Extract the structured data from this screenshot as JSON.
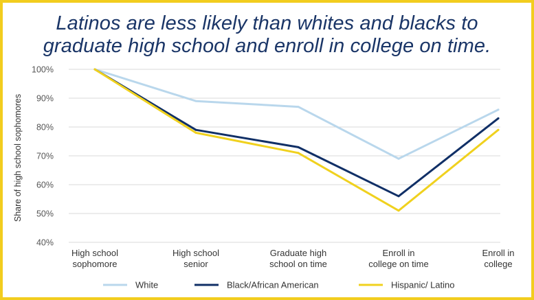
{
  "chart_data": {
    "type": "line",
    "title": "Latinos are less likely than whites and blacks to graduate high school and enroll in college on time.",
    "title_lines": [
      "Latinos are less likely than whites and blacks to",
      "graduate high school and enroll in college on time."
    ],
    "ylabel": "Share of high school sophomores",
    "xlabel": "",
    "ylim": [
      40,
      100
    ],
    "yticks": [
      100,
      90,
      80,
      70,
      60,
      50,
      40
    ],
    "ytick_labels": [
      "100%",
      "90%",
      "80%",
      "70%",
      "60%",
      "50%",
      "40%"
    ],
    "categories": [
      [
        "High school",
        "sophomore"
      ],
      [
        "High school",
        "senior"
      ],
      [
        "Graduate high",
        "school on time"
      ],
      [
        "Enroll in",
        "college on time"
      ],
      [
        "Enroll in",
        "college"
      ]
    ],
    "grid": true,
    "legend_position": "bottom",
    "series": [
      {
        "name": "White",
        "color": "#b9d7ec",
        "values": [
          100,
          89,
          87,
          69,
          86
        ]
      },
      {
        "name": "Black/African American",
        "color": "#102f66",
        "values": [
          100,
          79,
          73,
          56,
          83
        ]
      },
      {
        "name": "Hispanic/ Latino",
        "color": "#f0d11e",
        "values": [
          100,
          78,
          71,
          51,
          79
        ]
      }
    ]
  },
  "colors": {
    "border": "#f2cd1f",
    "title": "#1a3567",
    "grid": "#d8d8d8"
  }
}
